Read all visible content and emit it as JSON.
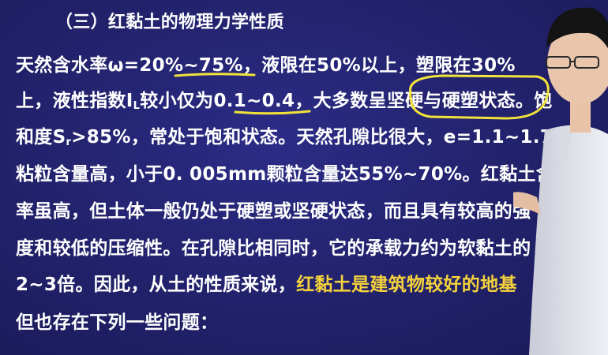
{
  "heading": "（三）红黏土的物理力学性质",
  "lines": [
    {
      "segments": [
        {
          "text": "天然含水率ω=20%~75%，液限在50%以上，塑限在30%"
        }
      ]
    },
    {
      "segments": [
        {
          "text": "上，液性指数I"
        },
        {
          "text": "L",
          "sub": true
        },
        {
          "text": "较小仅为0.1~0.4，大多数呈坚硬与硬塑状态。饱"
        }
      ]
    },
    {
      "segments": [
        {
          "text": "和度S"
        },
        {
          "text": "r",
          "sub": true
        },
        {
          "text": ">85%，常处于饱和状态。天然孔隙比很大，e=1.1~1.7。"
        }
      ]
    },
    {
      "segments": [
        {
          "text": "粘粒含量高，小于0. 005mm颗粒含量达55%~70%。红黏土含水"
        }
      ]
    },
    {
      "segments": [
        {
          "text": "率虽高，但土体一般仍处于硬塑或坚硬状态，而且具有较高的强"
        }
      ]
    },
    {
      "segments": [
        {
          "text": "度和较低的压缩性。在孔隙比相同时，它的承载力约为软黏土的"
        }
      ]
    },
    {
      "segments": [
        {
          "text": "2~3倍。因此，从土的性质来说，"
        },
        {
          "text": "红黏土是建筑物较好的地基",
          "highlight": true
        }
      ]
    },
    {
      "segments": [
        {
          "text": "但也存在下列一些问题："
        }
      ]
    }
  ],
  "colors": {
    "background": "#23236f",
    "text": "#ffffff",
    "highlight": "#f4d23c",
    "annotation": "#f2e23a"
  }
}
